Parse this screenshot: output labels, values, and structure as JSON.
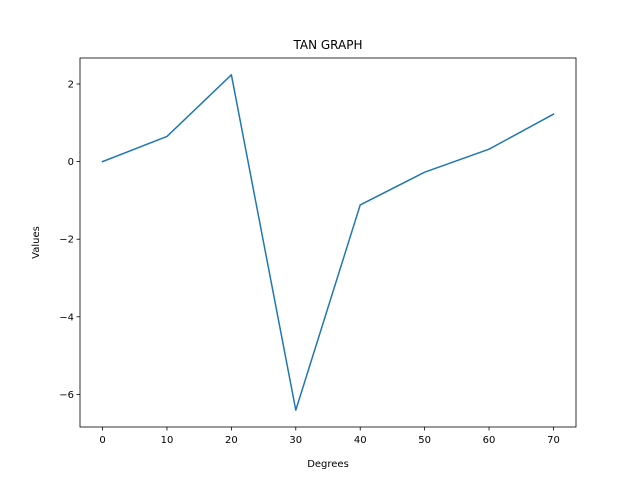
{
  "chart_data": {
    "type": "line",
    "title": "TAN GRAPH",
    "xlabel": "Degrees",
    "ylabel": "Values",
    "x": [
      0,
      10,
      20,
      30,
      40,
      50,
      60,
      70
    ],
    "series": [
      {
        "values": [
          0.0,
          0.648,
          2.237,
          -6.405,
          -1.117,
          -0.272,
          0.32,
          1.222
        ]
      }
    ],
    "xlim": [
      -3.5,
      73.5
    ],
    "ylim": [
      -6.84,
      2.67
    ],
    "xticks": [
      0,
      10,
      20,
      30,
      40,
      50,
      60,
      70
    ],
    "xtick_labels": [
      "0",
      "10",
      "20",
      "30",
      "40",
      "50",
      "60",
      "70"
    ],
    "yticks": [
      -6,
      -4,
      -2,
      0,
      2
    ],
    "ytick_labels": [
      "−6",
      "−4",
      "−2",
      "0",
      "2"
    ],
    "grid": false,
    "line_color": "#1f77b4"
  }
}
